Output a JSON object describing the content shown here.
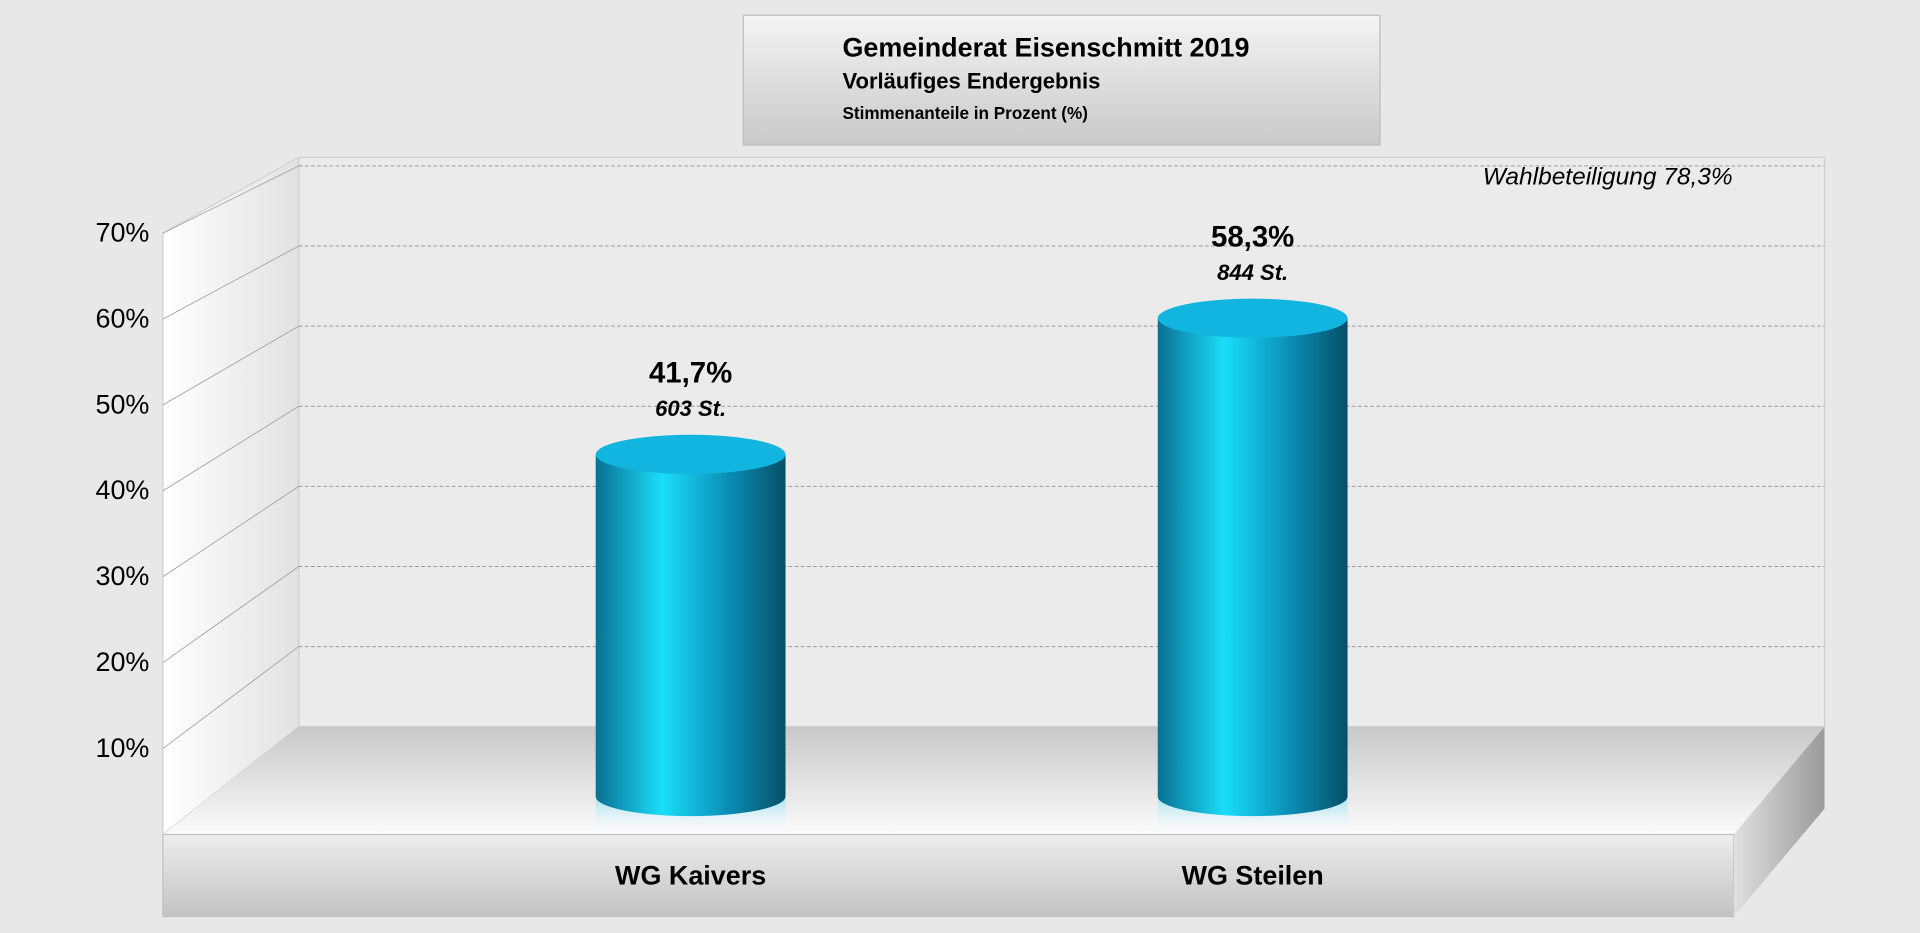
{
  "chart_data": {
    "type": "cylinder",
    "title": "Gemeinderat Eisenschmitt 2019",
    "subtitle": "Vorläufiges Endergebnis",
    "y_label": "Stimmenanteile in Prozent (%)",
    "annotation": "Wahlbeteiligung 78,3%",
    "categories": [
      "WG Kaivers",
      "WG Steilen"
    ],
    "values": [
      41.7,
      58.3
    ],
    "value_labels": [
      "41,7%",
      "58,3%"
    ],
    "votes": [
      603,
      844
    ],
    "vote_labels": [
      "603 St.",
      "844 St."
    ],
    "color": "#12b5e0",
    "ylim": [
      0,
      70
    ],
    "yticks": [
      {
        "value": 10,
        "label": "10%"
      },
      {
        "value": 20,
        "label": "20%"
      },
      {
        "value": 30,
        "label": "30%"
      },
      {
        "value": 40,
        "label": "40%"
      },
      {
        "value": 50,
        "label": "50%"
      },
      {
        "value": 60,
        "label": "60%"
      },
      {
        "value": 70,
        "label": "70%"
      }
    ],
    "grid": true
  }
}
